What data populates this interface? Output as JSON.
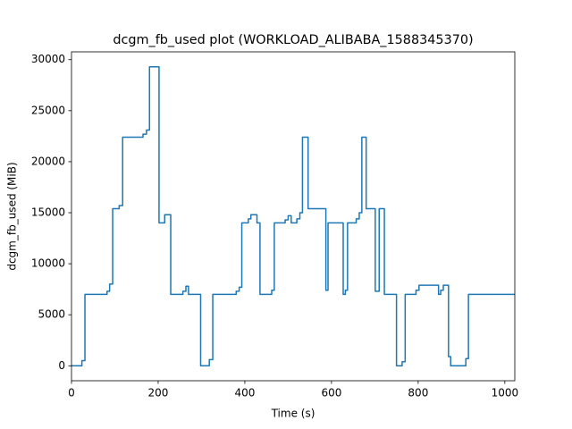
{
  "chart_data": {
    "type": "line",
    "title": "dcgm_fb_used plot (WORKLOAD_ALIBABA_1588345370)",
    "x_label": "Time (s)",
    "y_label": "dcgm_fb_used (MiB)",
    "color": "#1f77b4",
    "x": [
      0,
      24,
      24,
      31,
      31,
      82,
      82,
      88,
      88,
      95,
      95,
      110,
      110,
      118,
      118,
      165,
      165,
      173,
      173,
      180,
      180,
      202,
      202,
      215,
      215,
      229,
      229,
      257,
      257,
      264,
      264,
      270,
      270,
      298,
      298,
      318,
      318,
      326,
      326,
      380,
      380,
      387,
      387,
      393,
      393,
      408,
      408,
      414,
      414,
      428,
      428,
      435,
      435,
      462,
      462,
      468,
      468,
      493,
      493,
      500,
      500,
      507,
      507,
      520,
      520,
      527,
      527,
      533,
      533,
      546,
      546,
      587,
      587,
      592,
      592,
      627,
      627,
      632,
      632,
      637,
      637,
      657,
      657,
      664,
      664,
      670,
      670,
      680,
      680,
      701,
      701,
      710,
      710,
      722,
      722,
      750,
      750,
      763,
      763,
      770,
      770,
      795,
      795,
      802,
      802,
      847,
      847,
      852,
      852,
      858,
      858,
      870,
      870,
      875,
      875,
      910,
      910,
      916,
      916,
      1023
    ],
    "values": [
      0,
      0,
      500,
      500,
      7000,
      7000,
      7300,
      7300,
      8000,
      8000,
      15400,
      15400,
      15700,
      15700,
      22400,
      22400,
      22700,
      22700,
      23100,
      23100,
      29300,
      29300,
      14000,
      14000,
      14800,
      14800,
      7000,
      7000,
      7300,
      7300,
      7800,
      7800,
      7000,
      7000,
      0,
      0,
      600,
      600,
      7000,
      7000,
      7300,
      7300,
      7700,
      7700,
      14000,
      14000,
      14400,
      14400,
      14800,
      14800,
      14000,
      14000,
      7000,
      7000,
      7400,
      7400,
      14000,
      14000,
      14300,
      14300,
      14700,
      14700,
      14000,
      14000,
      14400,
      14400,
      15000,
      15000,
      22400,
      22400,
      15400,
      15400,
      7400,
      7400,
      14000,
      14000,
      7000,
      7000,
      7400,
      7400,
      14000,
      14000,
      14400,
      14400,
      15000,
      15000,
      22400,
      22400,
      15400,
      15400,
      7300,
      7300,
      15400,
      15400,
      7000,
      7000,
      0,
      0,
      400,
      400,
      7000,
      7000,
      7400,
      7400,
      7900,
      7900,
      7000,
      7000,
      7400,
      7400,
      7900,
      7900,
      900,
      900,
      0,
      0,
      700,
      700,
      7000,
      7000
    ],
    "xlim": [
      0,
      1023
    ],
    "ylim": [
      -1465,
      30765
    ],
    "xticks": [
      0,
      200,
      400,
      600,
      800,
      1000
    ],
    "yticks": [
      0,
      5000,
      10000,
      15000,
      20000,
      25000,
      30000
    ],
    "grid": false
  }
}
